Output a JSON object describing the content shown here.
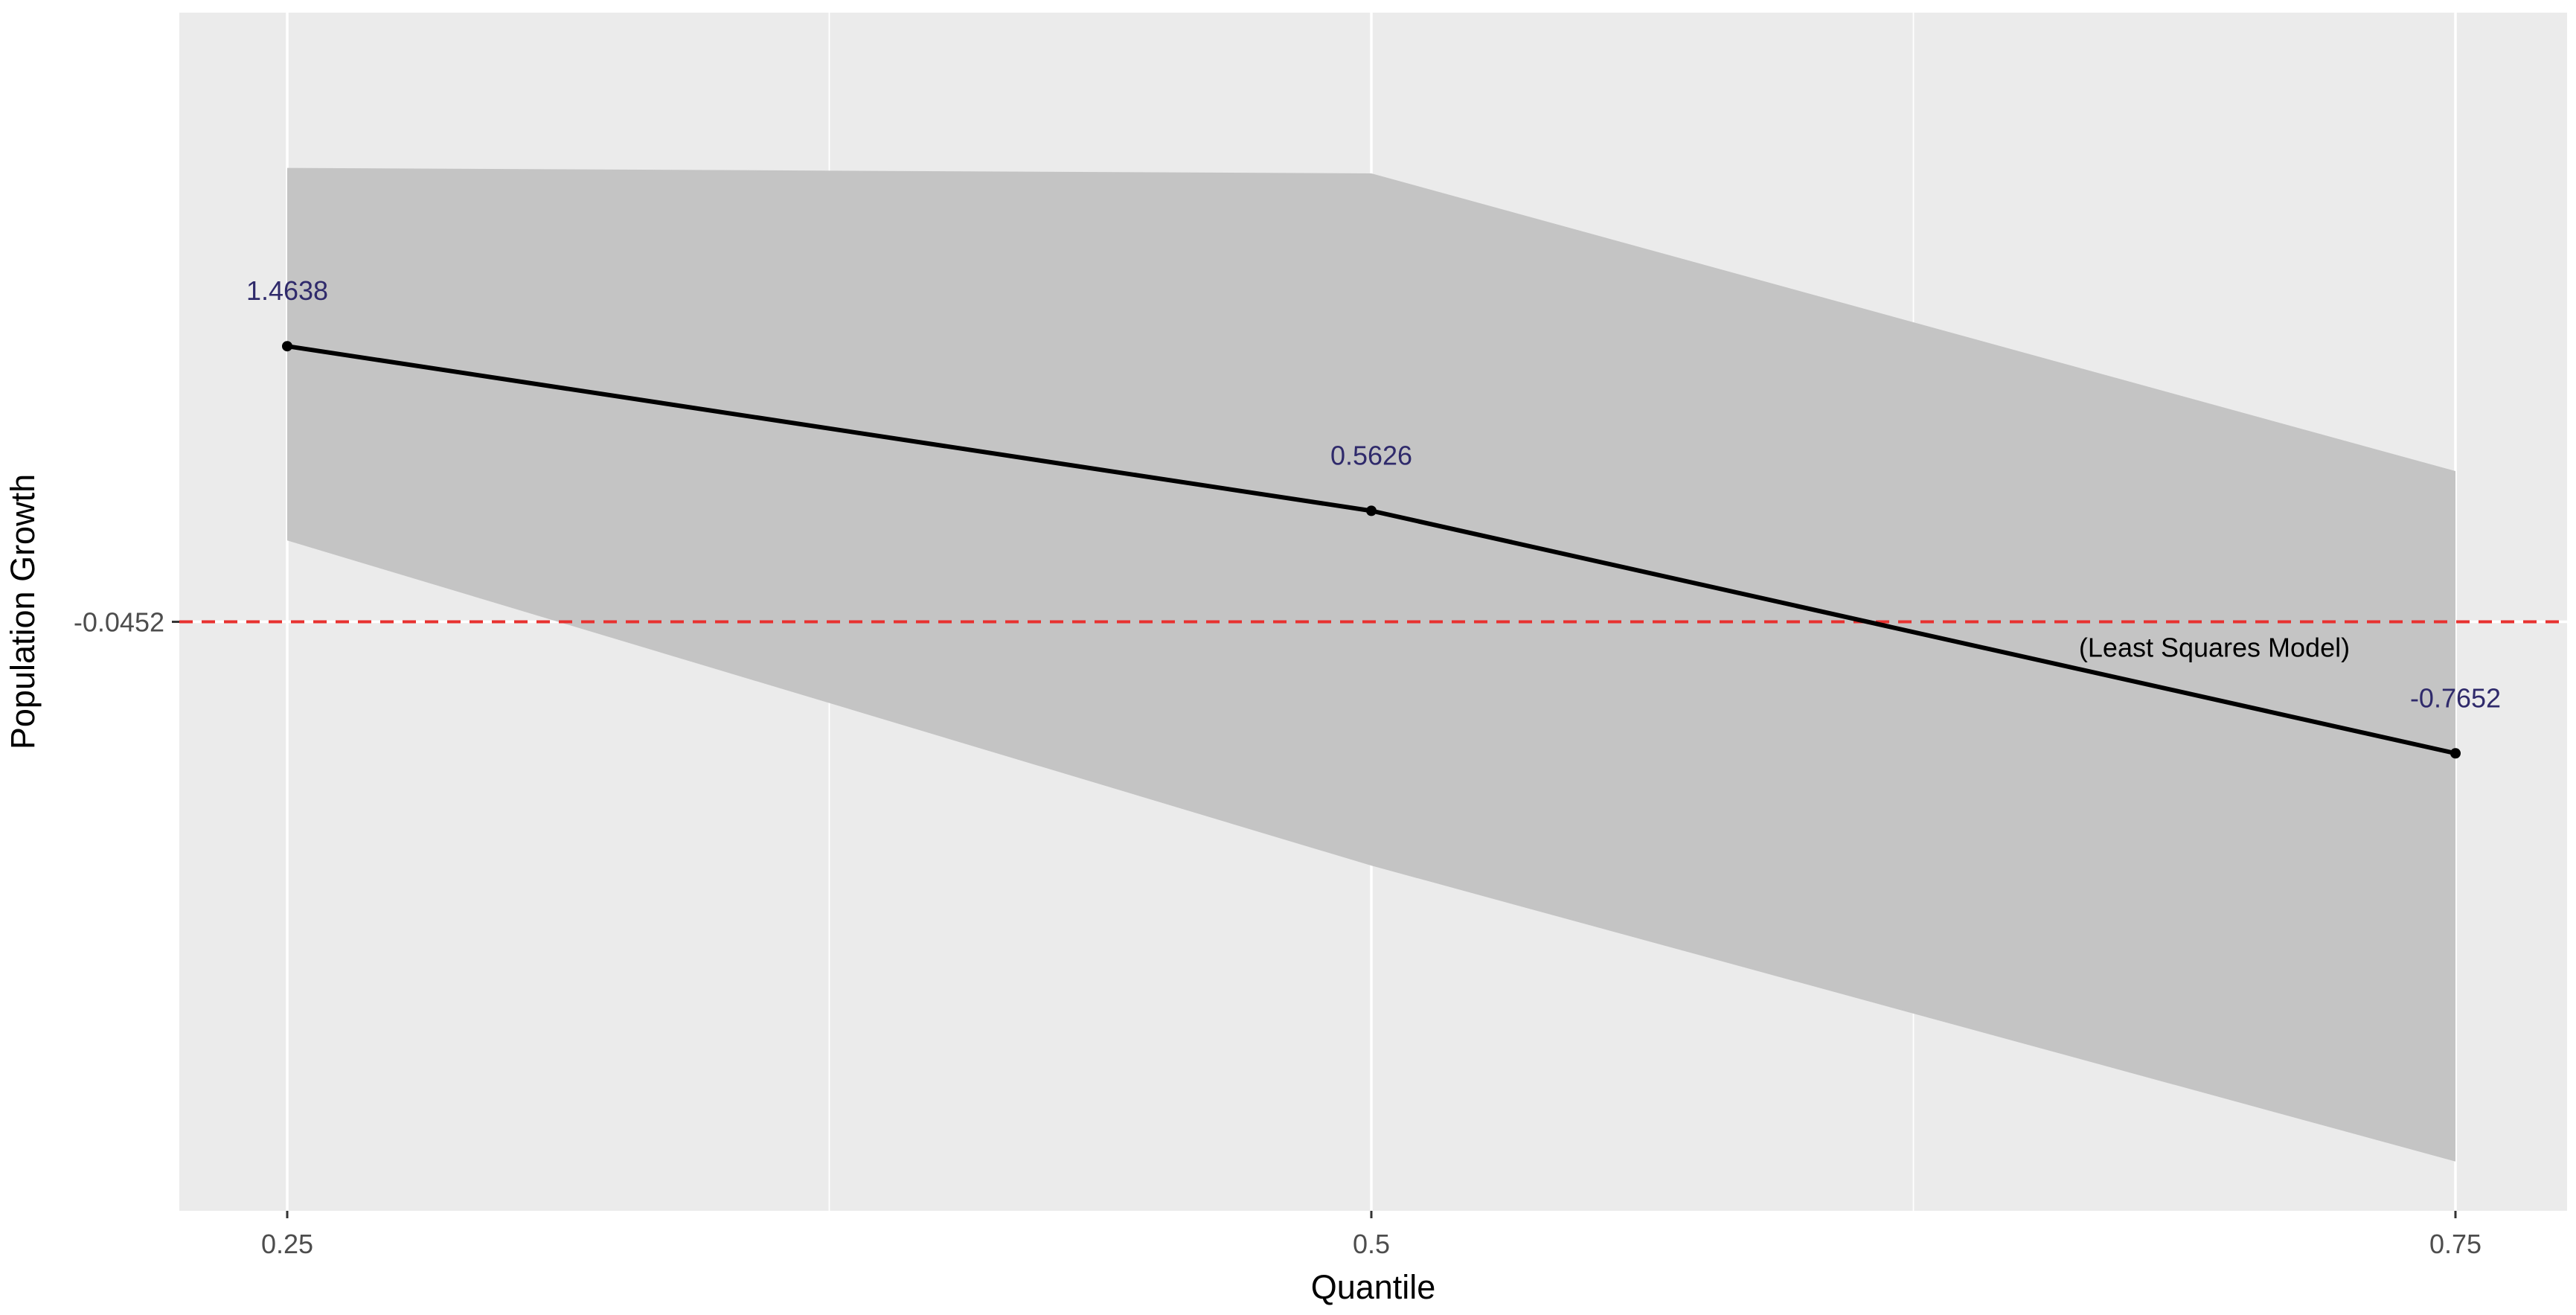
{
  "chart_data": {
    "type": "line",
    "title": "",
    "xlabel": "Quantile",
    "ylabel": "Population Growth",
    "x_ticks": [
      "0.25",
      "0.5",
      "0.75"
    ],
    "y_ticks": [
      "-0.0452"
    ],
    "grid": true,
    "legend": "none",
    "ylim": [
      -3.27,
      3.29
    ],
    "series": [
      {
        "values": [
          {
            "x": 0.25,
            "y": 1.4638
          },
          {
            "x": 0.5,
            "y": 0.5626
          },
          {
            "x": 0.75,
            "y": -0.7652
          }
        ],
        "point_labels": [
          "1.4638",
          "0.5626",
          "-0.7652"
        ],
        "ci_lower": [
          0.4,
          -1.38,
          -3.0
        ],
        "ci_upper": [
          2.44,
          2.41,
          0.78
        ],
        "color": "#000000",
        "band_color": "#c4c4c4"
      }
    ],
    "reference_line": {
      "y": -0.0452,
      "label": "-0.0452",
      "annotation": "(Least Squares Model)",
      "color": "#e8312f",
      "style": "dashed"
    },
    "colors": {
      "panel_background": "#ebebeb",
      "grid": "#ffffff",
      "point_label": "#2f2a6b"
    }
  }
}
